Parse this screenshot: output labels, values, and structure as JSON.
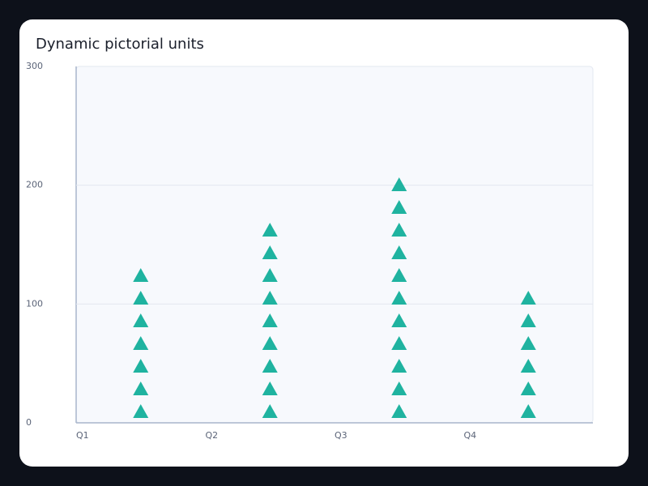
{
  "chart_data": {
    "type": "pictorial",
    "title": "Dynamic pictorial units",
    "categories": [
      "Q1",
      "Q2",
      "Q3",
      "Q4"
    ],
    "values": [
      125,
      165,
      200,
      105
    ],
    "color": "#1fb3a0",
    "ylim": [
      0,
      300
    ],
    "yticks": [
      0,
      100,
      200,
      300
    ],
    "grid": true
  }
}
